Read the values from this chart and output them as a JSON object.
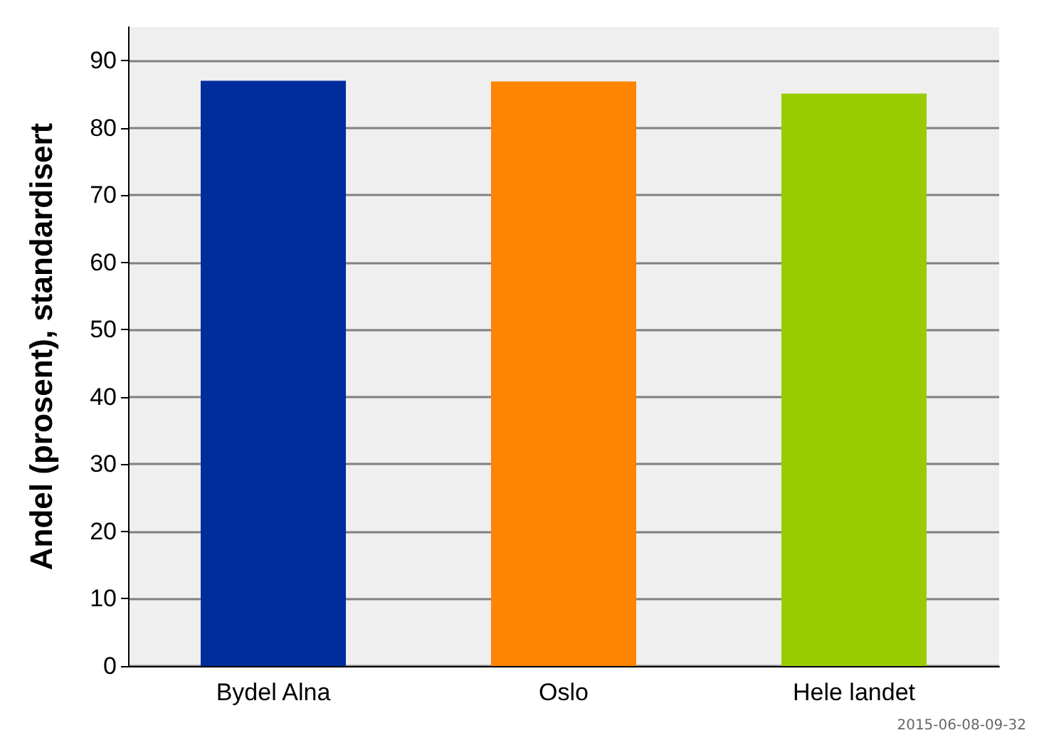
{
  "chart_data": {
    "type": "bar",
    "ylabel": "Andel (prosent), standardisert",
    "categories": [
      "Bydel Alna",
      "Oslo",
      "Hele landet"
    ],
    "values": [
      87.0,
      86.9,
      85.1
    ],
    "colors": [
      "#002d9c",
      "#ff8400",
      "#99cc00"
    ],
    "ylim": [
      0,
      95
    ],
    "yticks": [
      0,
      10,
      20,
      30,
      40,
      50,
      60,
      70,
      80,
      90
    ],
    "grid": "y",
    "annotations": [
      "2015-06-08-09-32"
    ]
  }
}
